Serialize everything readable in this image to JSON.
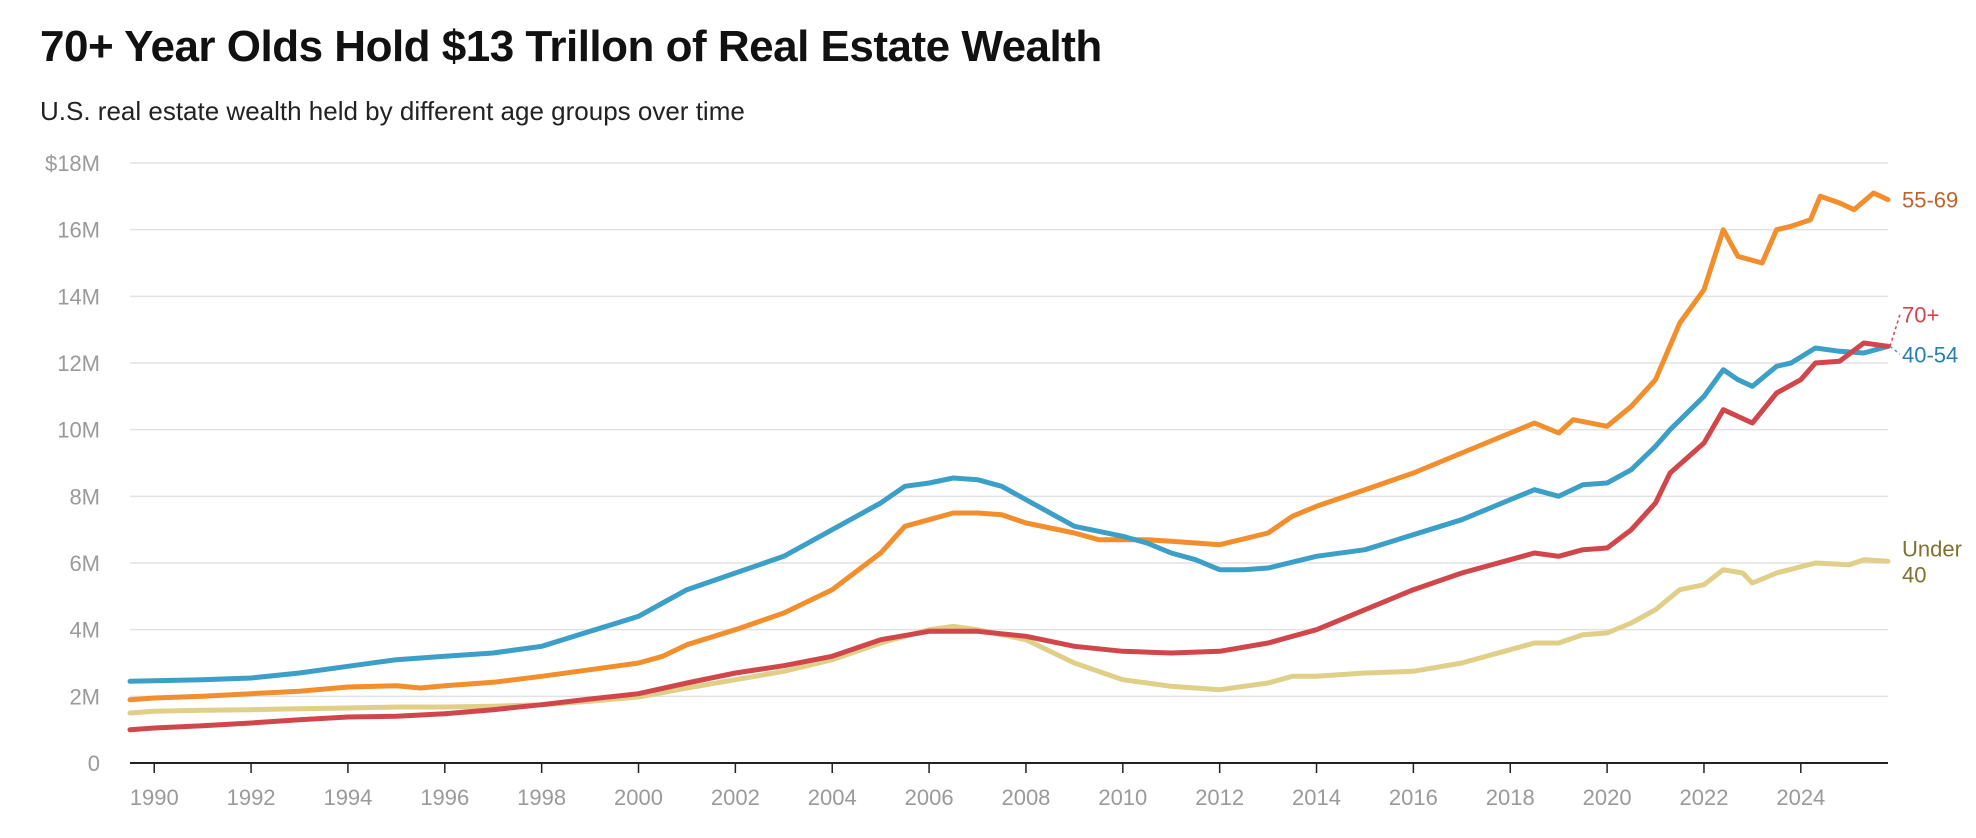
{
  "header": {
    "title": "70+ Year Olds Hold $13 Trillon of Real Estate Wealth",
    "subtitle": "U.S. real estate wealth held by different age groups over time"
  },
  "colors": {
    "55-69": "#f28e2b",
    "40-54": "#3b9fc7",
    "70+": "#d1464a",
    "Under 40": "#e0cf88",
    "label_55-69": "#c0622a",
    "label_40-54": "#2a7fae",
    "label_70+": "#d1464a",
    "label_Under 40": "#7f7230",
    "grid": "#e2e2e2",
    "axis": "#222222"
  },
  "chart_data": {
    "type": "line",
    "title": "70+ Year Olds Hold $13 Trillon of Real Estate Wealth",
    "subtitle": "U.S. real estate wealth held by different age groups over time",
    "xlabel": "",
    "ylabel": "",
    "xlim": [
      1989.5,
      2025.8
    ],
    "ylim": [
      0,
      18
    ],
    "x_ticks": [
      1990,
      1992,
      1994,
      1996,
      1998,
      2000,
      2002,
      2004,
      2006,
      2008,
      2010,
      2012,
      2014,
      2016,
      2018,
      2020,
      2022,
      2024
    ],
    "x_tick_labels": [
      "1990",
      "1992",
      "1994",
      "1996",
      "1998",
      "2000",
      "2002",
      "2004",
      "2006",
      "2008",
      "2010",
      "2012",
      "2014",
      "2016",
      "2018",
      "2020",
      "2022",
      "2024"
    ],
    "y_ticks": [
      0,
      2,
      4,
      6,
      8,
      10,
      12,
      14,
      16,
      18
    ],
    "y_tick_labels": [
      "0",
      "2M",
      "4M",
      "6M",
      "8M",
      "10M",
      "12M",
      "14M",
      "16M",
      "$18M"
    ],
    "grid": true,
    "series": [
      {
        "name": "55-69",
        "label_lines": [
          "55-69"
        ],
        "points": [
          [
            1989.5,
            1.9
          ],
          [
            1990,
            1.95
          ],
          [
            1991,
            2.0
          ],
          [
            1992,
            2.08
          ],
          [
            1993,
            2.15
          ],
          [
            1994,
            2.28
          ],
          [
            1995,
            2.32
          ],
          [
            1995.5,
            2.25
          ],
          [
            1996,
            2.32
          ],
          [
            1997,
            2.42
          ],
          [
            1998,
            2.6
          ],
          [
            1999,
            2.8
          ],
          [
            2000,
            3.0
          ],
          [
            2000.5,
            3.2
          ],
          [
            2001,
            3.55
          ],
          [
            2002,
            4.0
          ],
          [
            2003,
            4.5
          ],
          [
            2004,
            5.2
          ],
          [
            2005,
            6.3
          ],
          [
            2005.5,
            7.1
          ],
          [
            2006,
            7.3
          ],
          [
            2006.5,
            7.5
          ],
          [
            2007,
            7.5
          ],
          [
            2007.5,
            7.45
          ],
          [
            2008,
            7.2
          ],
          [
            2009,
            6.9
          ],
          [
            2009.5,
            6.7
          ],
          [
            2010,
            6.7
          ],
          [
            2010.5,
            6.7
          ],
          [
            2011,
            6.65
          ],
          [
            2011.5,
            6.6
          ],
          [
            2012,
            6.55
          ],
          [
            2013,
            6.9
          ],
          [
            2013.5,
            7.4
          ],
          [
            2014,
            7.7
          ],
          [
            2015,
            8.2
          ],
          [
            2016,
            8.7
          ],
          [
            2017,
            9.3
          ],
          [
            2018,
            9.9
          ],
          [
            2018.5,
            10.2
          ],
          [
            2019,
            9.9
          ],
          [
            2019.3,
            10.3
          ],
          [
            2020,
            10.1
          ],
          [
            2020.5,
            10.7
          ],
          [
            2021,
            11.5
          ],
          [
            2021.5,
            13.2
          ],
          [
            2022,
            14.2
          ],
          [
            2022.4,
            16.0
          ],
          [
            2022.7,
            15.2
          ],
          [
            2023.2,
            15.0
          ],
          [
            2023.5,
            16.0
          ],
          [
            2023.8,
            16.1
          ],
          [
            2024.2,
            16.3
          ],
          [
            2024.4,
            17.0
          ],
          [
            2024.8,
            16.8
          ],
          [
            2025.1,
            16.6
          ],
          [
            2025.5,
            17.1
          ],
          [
            2025.8,
            16.9
          ]
        ]
      },
      {
        "name": "40-54",
        "label_lines": [
          "40-54"
        ],
        "points": [
          [
            1989.5,
            2.45
          ],
          [
            1990,
            2.47
          ],
          [
            1991,
            2.5
          ],
          [
            1992,
            2.55
          ],
          [
            1993,
            2.7
          ],
          [
            1994,
            2.9
          ],
          [
            1995,
            3.1
          ],
          [
            1996,
            3.2
          ],
          [
            1997,
            3.3
          ],
          [
            1998,
            3.5
          ],
          [
            1999,
            3.95
          ],
          [
            2000,
            4.4
          ],
          [
            2000.5,
            4.8
          ],
          [
            2001,
            5.2
          ],
          [
            2002,
            5.7
          ],
          [
            2003,
            6.2
          ],
          [
            2004,
            7.0
          ],
          [
            2005,
            7.8
          ],
          [
            2005.5,
            8.3
          ],
          [
            2006,
            8.4
          ],
          [
            2006.5,
            8.55
          ],
          [
            2007,
            8.5
          ],
          [
            2007.5,
            8.3
          ],
          [
            2008,
            7.9
          ],
          [
            2009,
            7.1
          ],
          [
            2010,
            6.8
          ],
          [
            2010.5,
            6.6
          ],
          [
            2011,
            6.3
          ],
          [
            2011.5,
            6.1
          ],
          [
            2012,
            5.8
          ],
          [
            2012.5,
            5.8
          ],
          [
            2013,
            5.85
          ],
          [
            2014,
            6.2
          ],
          [
            2015,
            6.4
          ],
          [
            2016,
            6.85
          ],
          [
            2017,
            7.3
          ],
          [
            2018,
            7.9
          ],
          [
            2018.5,
            8.2
          ],
          [
            2019,
            8.0
          ],
          [
            2019.5,
            8.35
          ],
          [
            2020,
            8.4
          ],
          [
            2020.5,
            8.8
          ],
          [
            2021,
            9.5
          ],
          [
            2021.3,
            10.0
          ],
          [
            2022,
            11.0
          ],
          [
            2022.4,
            11.8
          ],
          [
            2022.7,
            11.5
          ],
          [
            2023,
            11.3
          ],
          [
            2023.5,
            11.9
          ],
          [
            2023.8,
            12.0
          ],
          [
            2024.3,
            12.45
          ],
          [
            2024.8,
            12.35
          ],
          [
            2025.3,
            12.3
          ],
          [
            2025.8,
            12.5
          ]
        ]
      },
      {
        "name": "70+",
        "label_lines": [
          "70+"
        ],
        "points": [
          [
            1989.5,
            1.0
          ],
          [
            1990,
            1.05
          ],
          [
            1991,
            1.12
          ],
          [
            1992,
            1.2
          ],
          [
            1993,
            1.3
          ],
          [
            1994,
            1.38
          ],
          [
            1995,
            1.4
          ],
          [
            1996,
            1.48
          ],
          [
            1997,
            1.6
          ],
          [
            1998,
            1.75
          ],
          [
            1999,
            1.92
          ],
          [
            2000,
            2.08
          ],
          [
            2001,
            2.4
          ],
          [
            2002,
            2.7
          ],
          [
            2003,
            2.92
          ],
          [
            2004,
            3.2
          ],
          [
            2005,
            3.7
          ],
          [
            2006,
            3.95
          ],
          [
            2007,
            3.95
          ],
          [
            2008,
            3.8
          ],
          [
            2009,
            3.5
          ],
          [
            2010,
            3.35
          ],
          [
            2011,
            3.3
          ],
          [
            2012,
            3.35
          ],
          [
            2013,
            3.6
          ],
          [
            2014,
            4.0
          ],
          [
            2015,
            4.6
          ],
          [
            2016,
            5.2
          ],
          [
            2017,
            5.7
          ],
          [
            2018,
            6.1
          ],
          [
            2018.5,
            6.3
          ],
          [
            2019,
            6.2
          ],
          [
            2019.5,
            6.4
          ],
          [
            2020,
            6.45
          ],
          [
            2020.5,
            7.0
          ],
          [
            2021,
            7.8
          ],
          [
            2021.3,
            8.7
          ],
          [
            2022,
            9.6
          ],
          [
            2022.4,
            10.6
          ],
          [
            2023,
            10.2
          ],
          [
            2023.5,
            11.1
          ],
          [
            2024,
            11.5
          ],
          [
            2024.3,
            12.0
          ],
          [
            2024.8,
            12.05
          ],
          [
            2025.3,
            12.6
          ],
          [
            2025.8,
            12.5
          ]
        ]
      },
      {
        "name": "Under 40",
        "label_lines": [
          "Under",
          "40"
        ],
        "points": [
          [
            1989.5,
            1.5
          ],
          [
            1990,
            1.55
          ],
          [
            1991,
            1.58
          ],
          [
            1992,
            1.6
          ],
          [
            1993,
            1.63
          ],
          [
            1994,
            1.65
          ],
          [
            1995,
            1.68
          ],
          [
            1996,
            1.68
          ],
          [
            1997,
            1.7
          ],
          [
            1998,
            1.75
          ],
          [
            1999,
            1.85
          ],
          [
            2000,
            1.98
          ],
          [
            2001,
            2.25
          ],
          [
            2002,
            2.5
          ],
          [
            2003,
            2.75
          ],
          [
            2004,
            3.1
          ],
          [
            2005,
            3.6
          ],
          [
            2006,
            4.0
          ],
          [
            2006.5,
            4.1
          ],
          [
            2007,
            4.0
          ],
          [
            2008,
            3.7
          ],
          [
            2009,
            3.0
          ],
          [
            2010,
            2.5
          ],
          [
            2011,
            2.3
          ],
          [
            2012,
            2.2
          ],
          [
            2013,
            2.4
          ],
          [
            2013.5,
            2.6
          ],
          [
            2014,
            2.6
          ],
          [
            2015,
            2.7
          ],
          [
            2016,
            2.75
          ],
          [
            2017,
            3.0
          ],
          [
            2018,
            3.4
          ],
          [
            2018.5,
            3.6
          ],
          [
            2019,
            3.6
          ],
          [
            2019.5,
            3.85
          ],
          [
            2020,
            3.9
          ],
          [
            2020.5,
            4.2
          ],
          [
            2021,
            4.6
          ],
          [
            2021.5,
            5.2
          ],
          [
            2022,
            5.35
          ],
          [
            2022.4,
            5.8
          ],
          [
            2022.8,
            5.7
          ],
          [
            2023,
            5.4
          ],
          [
            2023.5,
            5.7
          ],
          [
            2024.3,
            6.0
          ],
          [
            2025,
            5.95
          ],
          [
            2025.3,
            6.1
          ],
          [
            2025.8,
            6.05
          ]
        ]
      }
    ]
  }
}
